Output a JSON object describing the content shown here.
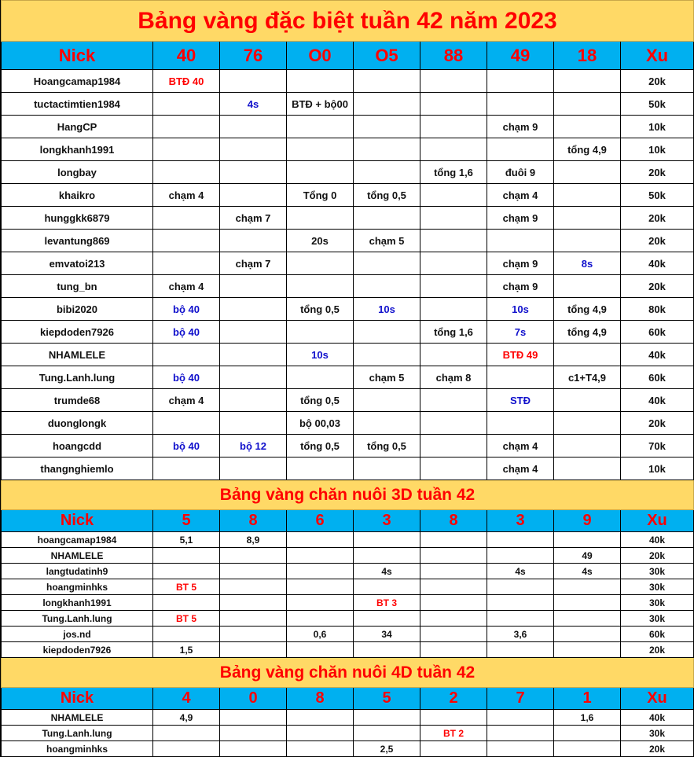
{
  "colors": {
    "title_bg": "#FFD966",
    "header_bg": "#00B0F0",
    "accent": "#FF0000",
    "blue_text": "#1010CC"
  },
  "sections": [
    {
      "title": "Bảng vàng đặc biệt tuần 42 năm 2023",
      "headers": [
        "Nick",
        "40",
        "76",
        "O0",
        "O5",
        "88",
        "49",
        "18",
        "Xu"
      ],
      "rows": [
        [
          {
            "t": "Hoangcamap1984"
          },
          {
            "t": "BTĐ 40",
            "c": "red"
          },
          {
            "t": ""
          },
          {
            "t": ""
          },
          {
            "t": ""
          },
          {
            "t": ""
          },
          {
            "t": ""
          },
          {
            "t": ""
          },
          {
            "t": "20k"
          }
        ],
        [
          {
            "t": "tuctactimtien1984"
          },
          {
            "t": ""
          },
          {
            "t": "4s",
            "c": "blue"
          },
          {
            "t": "BTĐ + bộ00"
          },
          {
            "t": ""
          },
          {
            "t": ""
          },
          {
            "t": ""
          },
          {
            "t": ""
          },
          {
            "t": "50k"
          }
        ],
        [
          {
            "t": "HangCP"
          },
          {
            "t": ""
          },
          {
            "t": ""
          },
          {
            "t": ""
          },
          {
            "t": ""
          },
          {
            "t": ""
          },
          {
            "t": "chạm 9"
          },
          {
            "t": ""
          },
          {
            "t": "10k"
          }
        ],
        [
          {
            "t": "longkhanh1991"
          },
          {
            "t": ""
          },
          {
            "t": ""
          },
          {
            "t": ""
          },
          {
            "t": ""
          },
          {
            "t": ""
          },
          {
            "t": ""
          },
          {
            "t": "tổng 4,9"
          },
          {
            "t": "10k"
          }
        ],
        [
          {
            "t": "longbay"
          },
          {
            "t": ""
          },
          {
            "t": ""
          },
          {
            "t": ""
          },
          {
            "t": ""
          },
          {
            "t": "tổng 1,6"
          },
          {
            "t": "đuôi 9"
          },
          {
            "t": ""
          },
          {
            "t": "20k"
          }
        ],
        [
          {
            "t": "khaikro"
          },
          {
            "t": "chạm 4"
          },
          {
            "t": ""
          },
          {
            "t": "Tổng 0"
          },
          {
            "t": "tổng 0,5"
          },
          {
            "t": ""
          },
          {
            "t": "chạm 4"
          },
          {
            "t": ""
          },
          {
            "t": "50k"
          }
        ],
        [
          {
            "t": "hunggkk6879"
          },
          {
            "t": ""
          },
          {
            "t": "chạm 7"
          },
          {
            "t": ""
          },
          {
            "t": ""
          },
          {
            "t": ""
          },
          {
            "t": "chạm 9"
          },
          {
            "t": ""
          },
          {
            "t": "20k"
          }
        ],
        [
          {
            "t": "levantung869"
          },
          {
            "t": ""
          },
          {
            "t": ""
          },
          {
            "t": "20s"
          },
          {
            "t": "chạm 5"
          },
          {
            "t": ""
          },
          {
            "t": ""
          },
          {
            "t": ""
          },
          {
            "t": "20k"
          }
        ],
        [
          {
            "t": "emvatoi213"
          },
          {
            "t": ""
          },
          {
            "t": "chạm 7"
          },
          {
            "t": ""
          },
          {
            "t": ""
          },
          {
            "t": ""
          },
          {
            "t": "chạm 9"
          },
          {
            "t": "8s",
            "c": "blue"
          },
          {
            "t": "40k"
          }
        ],
        [
          {
            "t": "tung_bn"
          },
          {
            "t": "chạm 4"
          },
          {
            "t": ""
          },
          {
            "t": ""
          },
          {
            "t": ""
          },
          {
            "t": ""
          },
          {
            "t": "chạm 9"
          },
          {
            "t": ""
          },
          {
            "t": "20k"
          }
        ],
        [
          {
            "t": "bibi2020"
          },
          {
            "t": "bộ 40",
            "c": "blue"
          },
          {
            "t": ""
          },
          {
            "t": "tổng 0,5"
          },
          {
            "t": "10s",
            "c": "blue"
          },
          {
            "t": ""
          },
          {
            "t": "10s",
            "c": "blue"
          },
          {
            "t": "tổng 4,9"
          },
          {
            "t": "80k"
          }
        ],
        [
          {
            "t": "kiepdoden7926"
          },
          {
            "t": "bộ 40",
            "c": "blue"
          },
          {
            "t": ""
          },
          {
            "t": ""
          },
          {
            "t": ""
          },
          {
            "t": "tổng 1,6"
          },
          {
            "t": "7s",
            "c": "blue"
          },
          {
            "t": "tổng 4,9"
          },
          {
            "t": "60k"
          }
        ],
        [
          {
            "t": "NHAMLELE"
          },
          {
            "t": ""
          },
          {
            "t": ""
          },
          {
            "t": "10s",
            "c": "blue"
          },
          {
            "t": ""
          },
          {
            "t": ""
          },
          {
            "t": "BTĐ 49",
            "c": "red"
          },
          {
            "t": ""
          },
          {
            "t": "40k"
          }
        ],
        [
          {
            "t": "Tung.Lanh.lung"
          },
          {
            "t": "bộ 40",
            "c": "blue"
          },
          {
            "t": ""
          },
          {
            "t": ""
          },
          {
            "t": "chạm 5"
          },
          {
            "t": "chạm 8"
          },
          {
            "t": ""
          },
          {
            "t": "c1+T4,9"
          },
          {
            "t": "60k"
          }
        ],
        [
          {
            "t": "trumde68"
          },
          {
            "t": "chạm 4"
          },
          {
            "t": ""
          },
          {
            "t": "tổng 0,5"
          },
          {
            "t": ""
          },
          {
            "t": ""
          },
          {
            "t": "STĐ",
            "c": "blue"
          },
          {
            "t": ""
          },
          {
            "t": "40k"
          }
        ],
        [
          {
            "t": "duonglongk"
          },
          {
            "t": ""
          },
          {
            "t": ""
          },
          {
            "t": "bộ 00,03"
          },
          {
            "t": ""
          },
          {
            "t": ""
          },
          {
            "t": ""
          },
          {
            "t": ""
          },
          {
            "t": "20k"
          }
        ],
        [
          {
            "t": "hoangcdd"
          },
          {
            "t": "bộ 40",
            "c": "blue"
          },
          {
            "t": "bộ 12",
            "c": "blue"
          },
          {
            "t": "tổng 0,5"
          },
          {
            "t": "tổng 0,5"
          },
          {
            "t": ""
          },
          {
            "t": "chạm 4"
          },
          {
            "t": ""
          },
          {
            "t": "70k"
          }
        ],
        [
          {
            "t": "thangnghiemlo"
          },
          {
            "t": ""
          },
          {
            "t": ""
          },
          {
            "t": ""
          },
          {
            "t": ""
          },
          {
            "t": ""
          },
          {
            "t": "chạm 4"
          },
          {
            "t": ""
          },
          {
            "t": "10k"
          }
        ]
      ]
    },
    {
      "title": "Bảng vàng chăn nuôi 3D tuần 42",
      "headers": [
        "Nick",
        "5",
        "8",
        "6",
        "3",
        "8",
        "3",
        "9",
        "Xu"
      ],
      "rows": [
        [
          {
            "t": "hoangcamap1984"
          },
          {
            "t": "5,1"
          },
          {
            "t": "8,9"
          },
          {
            "t": ""
          },
          {
            "t": ""
          },
          {
            "t": ""
          },
          {
            "t": ""
          },
          {
            "t": ""
          },
          {
            "t": "40k"
          }
        ],
        [
          {
            "t": "NHAMLELE"
          },
          {
            "t": ""
          },
          {
            "t": ""
          },
          {
            "t": ""
          },
          {
            "t": ""
          },
          {
            "t": ""
          },
          {
            "t": ""
          },
          {
            "t": "49"
          },
          {
            "t": "20k"
          }
        ],
        [
          {
            "t": "langtudatinh9"
          },
          {
            "t": ""
          },
          {
            "t": ""
          },
          {
            "t": ""
          },
          {
            "t": "4s"
          },
          {
            "t": ""
          },
          {
            "t": "4s"
          },
          {
            "t": "4s"
          },
          {
            "t": "30k"
          }
        ],
        [
          {
            "t": "hoangminhks"
          },
          {
            "t": "BT 5",
            "c": "red"
          },
          {
            "t": ""
          },
          {
            "t": ""
          },
          {
            "t": ""
          },
          {
            "t": ""
          },
          {
            "t": ""
          },
          {
            "t": ""
          },
          {
            "t": "30k"
          }
        ],
        [
          {
            "t": "longkhanh1991"
          },
          {
            "t": ""
          },
          {
            "t": ""
          },
          {
            "t": ""
          },
          {
            "t": "BT 3",
            "c": "red"
          },
          {
            "t": ""
          },
          {
            "t": ""
          },
          {
            "t": ""
          },
          {
            "t": "30k"
          }
        ],
        [
          {
            "t": "Tung.Lanh.lung"
          },
          {
            "t": "BT 5",
            "c": "red"
          },
          {
            "t": ""
          },
          {
            "t": ""
          },
          {
            "t": ""
          },
          {
            "t": ""
          },
          {
            "t": ""
          },
          {
            "t": ""
          },
          {
            "t": "30k"
          }
        ],
        [
          {
            "t": "jos.nd"
          },
          {
            "t": ""
          },
          {
            "t": ""
          },
          {
            "t": "0,6"
          },
          {
            "t": "34"
          },
          {
            "t": ""
          },
          {
            "t": "3,6"
          },
          {
            "t": ""
          },
          {
            "t": "60k"
          }
        ],
        [
          {
            "t": "kiepdoden7926"
          },
          {
            "t": "1,5"
          },
          {
            "t": ""
          },
          {
            "t": ""
          },
          {
            "t": ""
          },
          {
            "t": ""
          },
          {
            "t": ""
          },
          {
            "t": ""
          },
          {
            "t": "20k"
          }
        ]
      ]
    },
    {
      "title": "Bảng vàng chăn nuôi 4D tuần 42",
      "headers": [
        "Nick",
        "4",
        "0",
        "8",
        "5",
        "2",
        "7",
        "1",
        "Xu"
      ],
      "rows": [
        [
          {
            "t": "NHAMLELE"
          },
          {
            "t": "4,9"
          },
          {
            "t": ""
          },
          {
            "t": ""
          },
          {
            "t": ""
          },
          {
            "t": ""
          },
          {
            "t": ""
          },
          {
            "t": "1,6"
          },
          {
            "t": "40k"
          }
        ],
        [
          {
            "t": "Tung.Lanh.lung"
          },
          {
            "t": ""
          },
          {
            "t": ""
          },
          {
            "t": ""
          },
          {
            "t": ""
          },
          {
            "t": "BT 2",
            "c": "red"
          },
          {
            "t": ""
          },
          {
            "t": ""
          },
          {
            "t": "30k"
          }
        ],
        [
          {
            "t": "hoangminhks"
          },
          {
            "t": ""
          },
          {
            "t": ""
          },
          {
            "t": ""
          },
          {
            "t": "2,5"
          },
          {
            "t": ""
          },
          {
            "t": ""
          },
          {
            "t": ""
          },
          {
            "t": "20k"
          }
        ]
      ]
    }
  ]
}
